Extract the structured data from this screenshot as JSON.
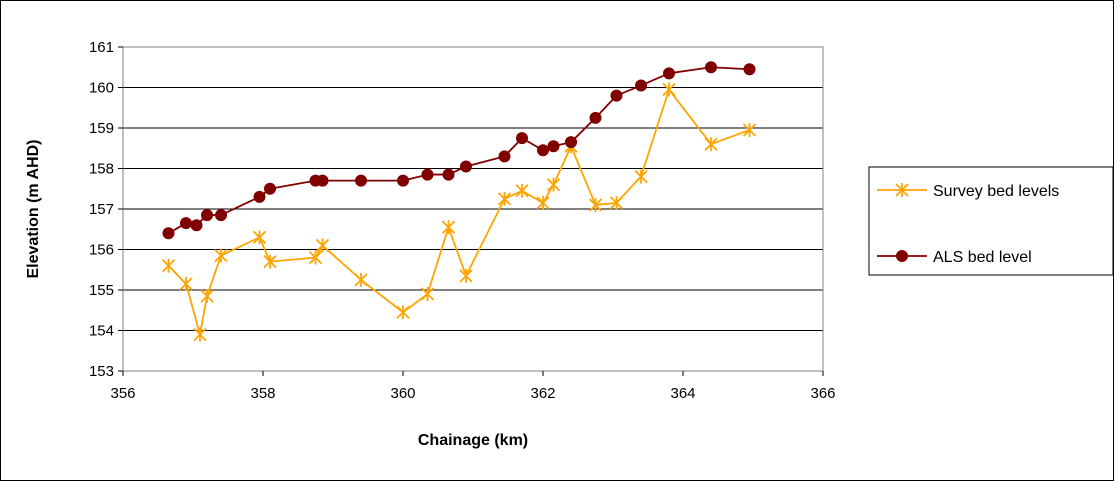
{
  "chart_data": {
    "type": "line",
    "title": "",
    "xlabel": "Chainage (km)",
    "ylabel": "Elevation (m AHD)",
    "xlim": [
      356,
      366
    ],
    "ylim": [
      153,
      161
    ],
    "xticks": [
      356,
      358,
      360,
      362,
      364,
      366
    ],
    "yticks": [
      153,
      154,
      155,
      156,
      157,
      158,
      159,
      160,
      161
    ],
    "grid": "horizontal major",
    "legend_position": "right",
    "series": [
      {
        "name": "Survey bed levels",
        "color": "#FFA500",
        "marker": "asterisk",
        "x": [
          356.65,
          356.9,
          357.1,
          357.2,
          357.4,
          357.95,
          358.1,
          358.75,
          358.85,
          359.4,
          360.0,
          360.35,
          360.65,
          360.9,
          361.45,
          361.7,
          362.0,
          362.15,
          362.4,
          362.75,
          363.05,
          363.4,
          363.8,
          364.4,
          364.95
        ],
        "y": [
          155.6,
          155.15,
          153.9,
          154.85,
          155.85,
          156.3,
          155.7,
          155.8,
          156.1,
          155.25,
          154.45,
          154.9,
          156.55,
          155.35,
          157.25,
          157.45,
          157.15,
          157.6,
          158.55,
          157.1,
          157.15,
          157.8,
          159.95,
          158.6,
          158.95
        ]
      },
      {
        "name": "ALS bed level",
        "color": "#800000",
        "marker": "circle",
        "x": [
          356.65,
          356.9,
          357.05,
          357.2,
          357.4,
          357.95,
          358.1,
          358.75,
          358.85,
          359.4,
          360.0,
          360.35,
          360.65,
          360.9,
          361.45,
          361.7,
          362.0,
          362.15,
          362.4,
          362.75,
          363.05,
          363.4,
          363.8,
          364.4,
          364.95
        ],
        "y": [
          156.4,
          156.65,
          156.6,
          156.85,
          156.85,
          157.3,
          157.5,
          157.7,
          157.7,
          157.7,
          157.7,
          157.85,
          157.85,
          158.05,
          158.3,
          158.75,
          158.45,
          158.55,
          158.65,
          159.25,
          159.8,
          160.05,
          160.35,
          160.5,
          160.45
        ]
      }
    ]
  }
}
